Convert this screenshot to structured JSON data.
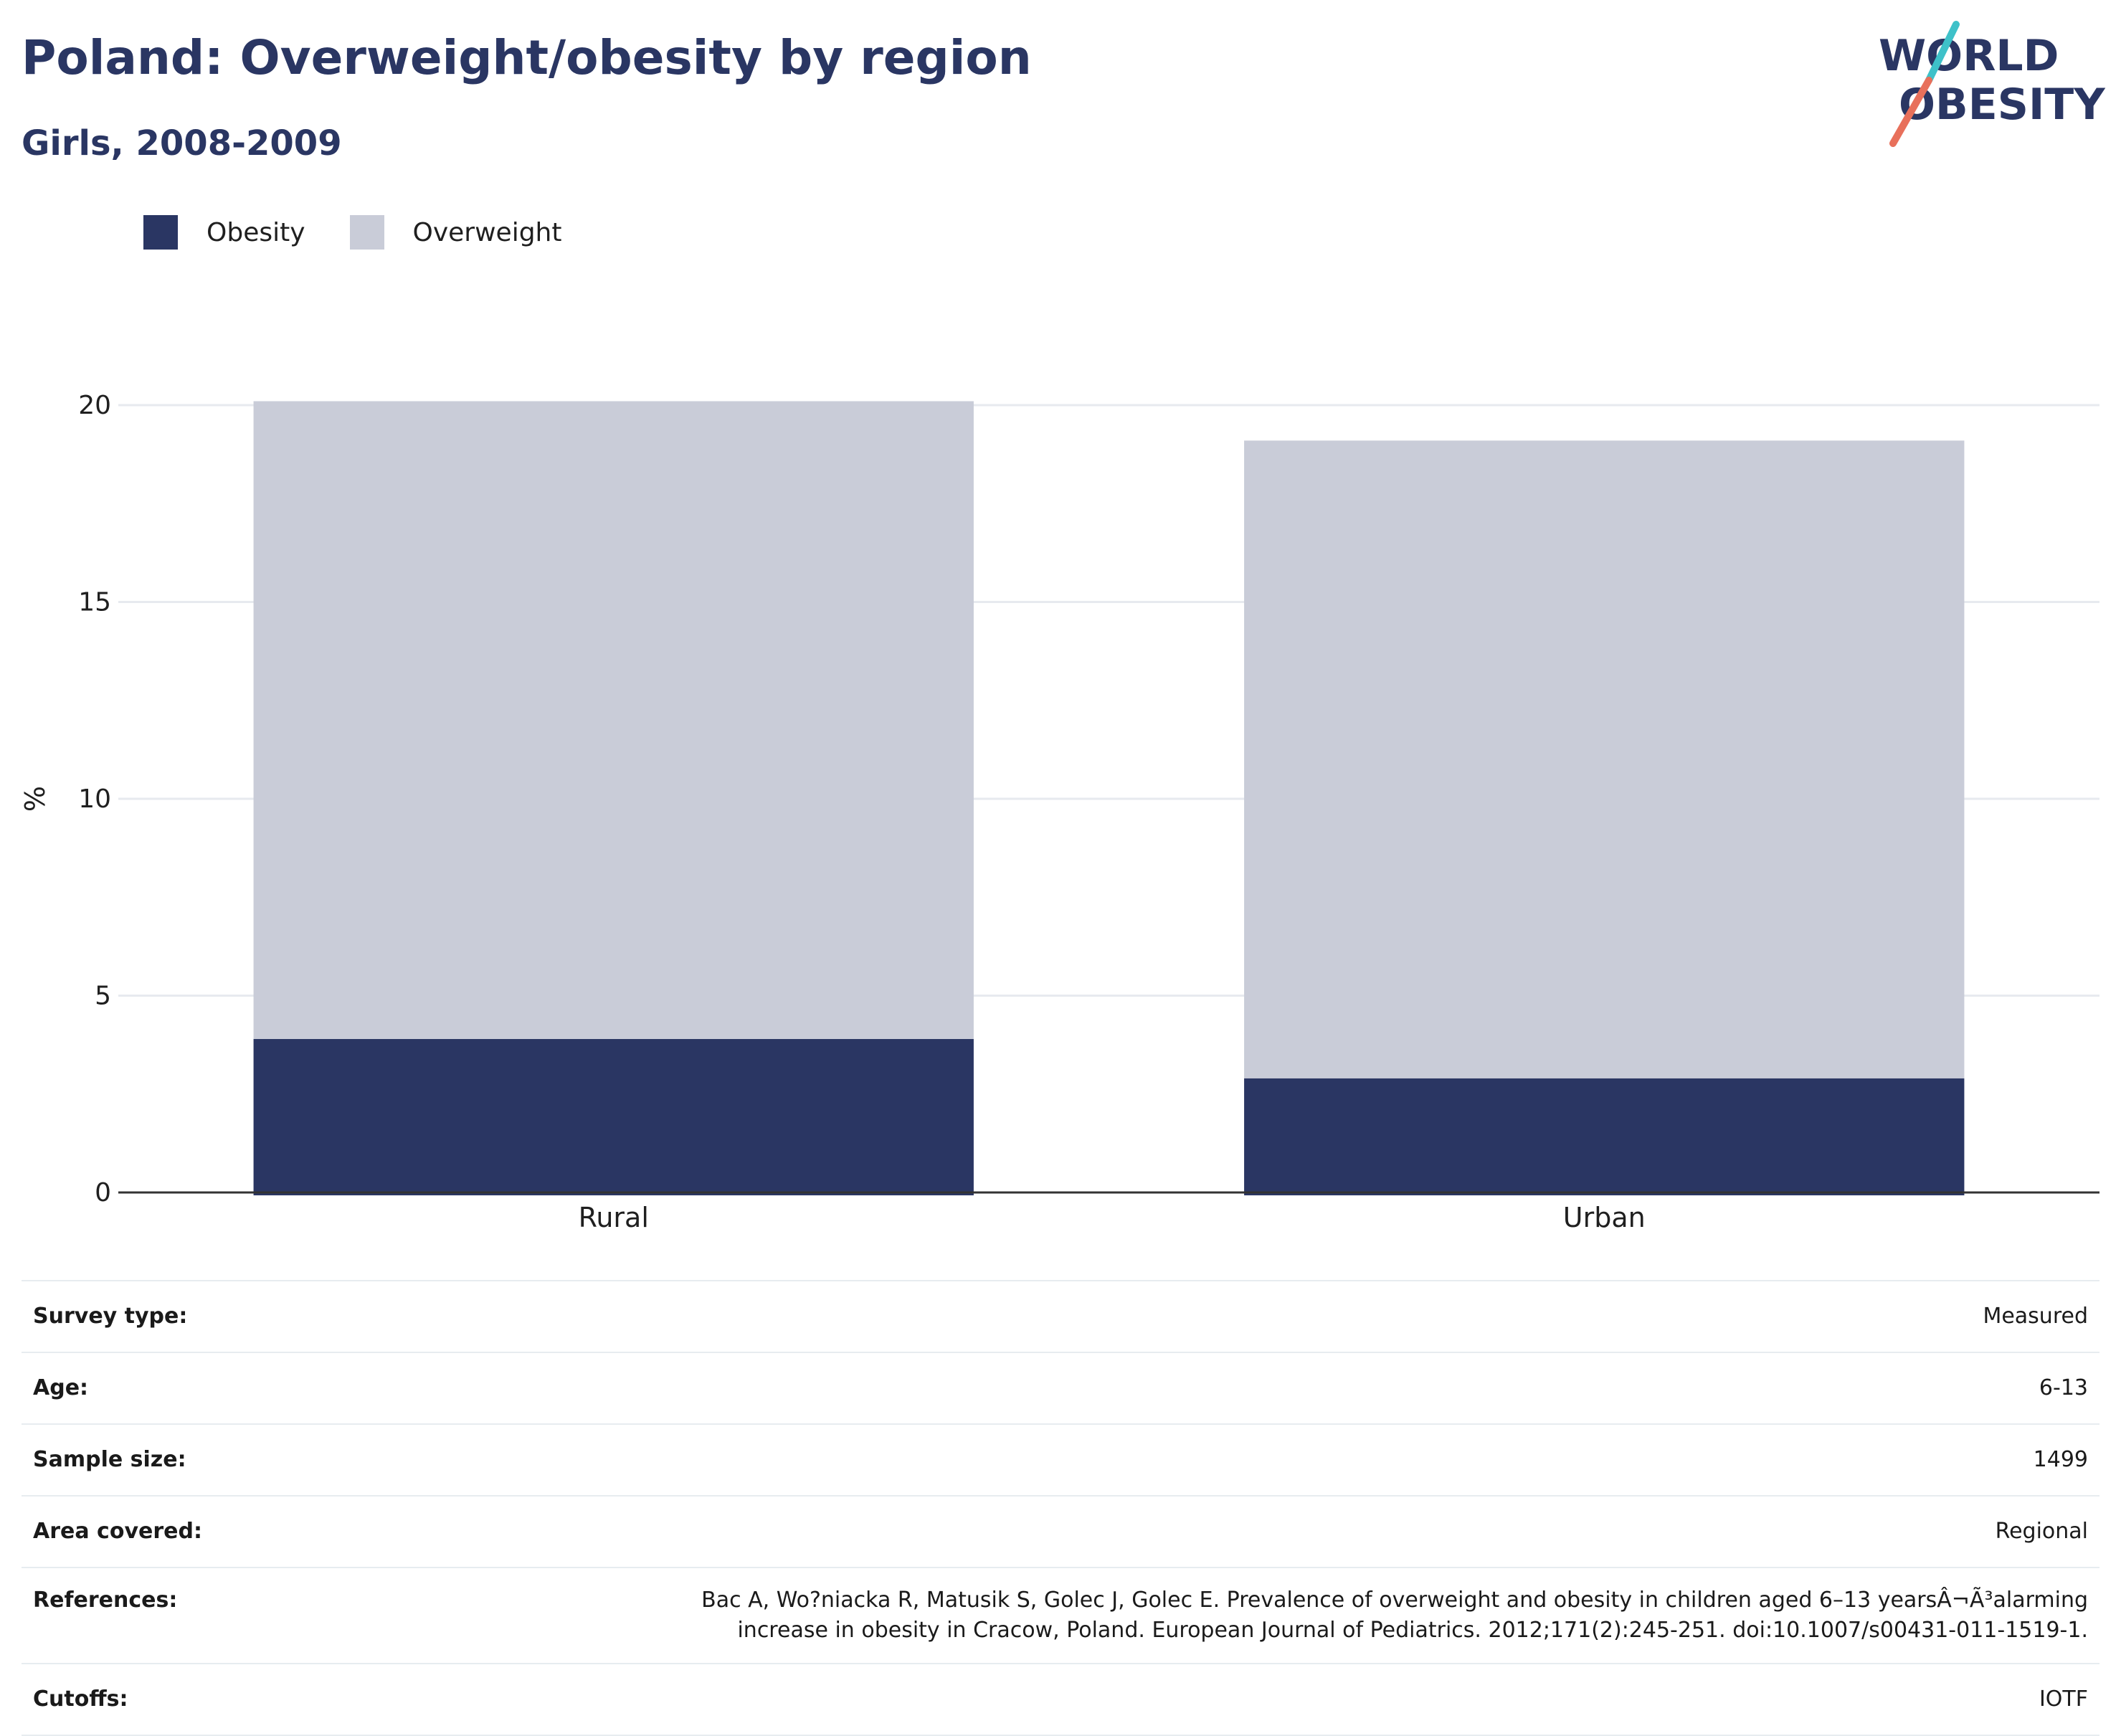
{
  "header": {
    "title": "Poland: Overweight/obesity by region",
    "subtitle": "Girls, 2008-2009"
  },
  "logo": {
    "line1": "WORLD",
    "line2": "OBESITY",
    "colors": {
      "text": "#2a3663",
      "slash_top": "#3ec1c9",
      "slash_bottom": "#e8705b"
    }
  },
  "colors": {
    "obesity": "#2a3663",
    "overweight": "#c9ccd8",
    "axis": "#333333",
    "grid": "#e7eaef"
  },
  "chart_data": {
    "type": "bar",
    "stacked": true,
    "categories": [
      "Rural",
      "Urban"
    ],
    "series": [
      {
        "name": "Obesity",
        "values": [
          3.9,
          2.9
        ]
      },
      {
        "name": "Overweight",
        "values": [
          16.2,
          16.2
        ]
      }
    ],
    "ylabel": "%",
    "xlabel": "",
    "ylim": [
      0,
      20
    ],
    "yticks": [
      0,
      5,
      10,
      15,
      20
    ],
    "grid": true,
    "legend_position": "top-left"
  },
  "info": [
    {
      "key": "Survey type:",
      "value": "Measured"
    },
    {
      "key": "Age:",
      "value": "6-13"
    },
    {
      "key": "Sample size:",
      "value": "1499"
    },
    {
      "key": "Area covered:",
      "value": "Regional"
    },
    {
      "key": "References:",
      "value_lines": [
        "Bac A, Wo?niacka R, Matusik S, Golec J, Golec E. Prevalence of overweight and obesity in children aged 6–13 yearsÂ¬Ã³alarming",
        "increase in obesity in Cracow, Poland. European Journal of Pediatrics. 2012;171(2):245-251. doi:10.1007/s00431-011-1519-1."
      ]
    },
    {
      "key": "Cutoffs:",
      "value": "IOTF"
    }
  ]
}
